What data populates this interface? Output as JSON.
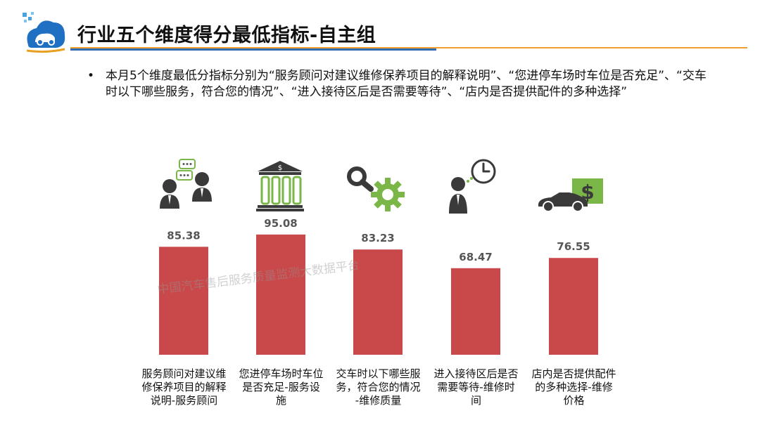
{
  "page": {
    "title": "行业五个维度得分最低指标-自主组",
    "bullet": "本月5个维度最低分指标分别为“服务顾问对建议维修保养项目的解释说明”、“您进停车场时车位是否充足”、“交车时以下哪些服务，符合您的情况”、“进入接待区后是否需要等待”、“店内是否提供配件的多种选择”",
    "watermark": "中国汽车售后服务质量监测大数据平台",
    "logo_icon": "car-cloud-logo-icon"
  },
  "colors": {
    "bar": "#c9484a",
    "title_rule_blue": "#2e6db4",
    "title_rule_orange": "#f0a030",
    "icon": "#3a3a3a",
    "icon_green": "#7ab648"
  },
  "chart_data": {
    "type": "bar",
    "categories": [
      "服务顾问对建议维修保养项目的解释说明-服务顾问",
      "您进停车场时车位是否充足-服务设施",
      "交车时以下哪些服务，符合您的情况-维修质量",
      "进入接待区后是否需要等待-维修时间",
      "店内是否提供配件的多种选择-维修价格"
    ],
    "values": [
      85.38,
      95.08,
      83.23,
      68.47,
      76.55
    ],
    "value_labels": [
      "85.38",
      "95.08",
      "83.23",
      "68.47",
      "76.55"
    ],
    "category_lines": [
      [
        "服务顾问对建议维",
        "修保养项目的解释",
        "说明-服务顾问"
      ],
      [
        "您进停车场时车位",
        "是否充足-服务设",
        "施"
      ],
      [
        "交车时以下哪些服",
        "务，符合您的情况",
        "-维修质量"
      ],
      [
        "进入接待区后是否",
        "需要等待-维修时",
        "间"
      ],
      [
        "店内是否提供配件",
        "的多种选择-维修",
        "价格"
      ]
    ],
    "icons": [
      "conversation-people-icon",
      "bank-building-icon",
      "magnifier-gear-icon",
      "person-clock-icon",
      "car-money-icon"
    ],
    "ylim": [
      0,
      100
    ],
    "xlabel": "",
    "ylabel": "",
    "grid": false,
    "legend": "none"
  }
}
